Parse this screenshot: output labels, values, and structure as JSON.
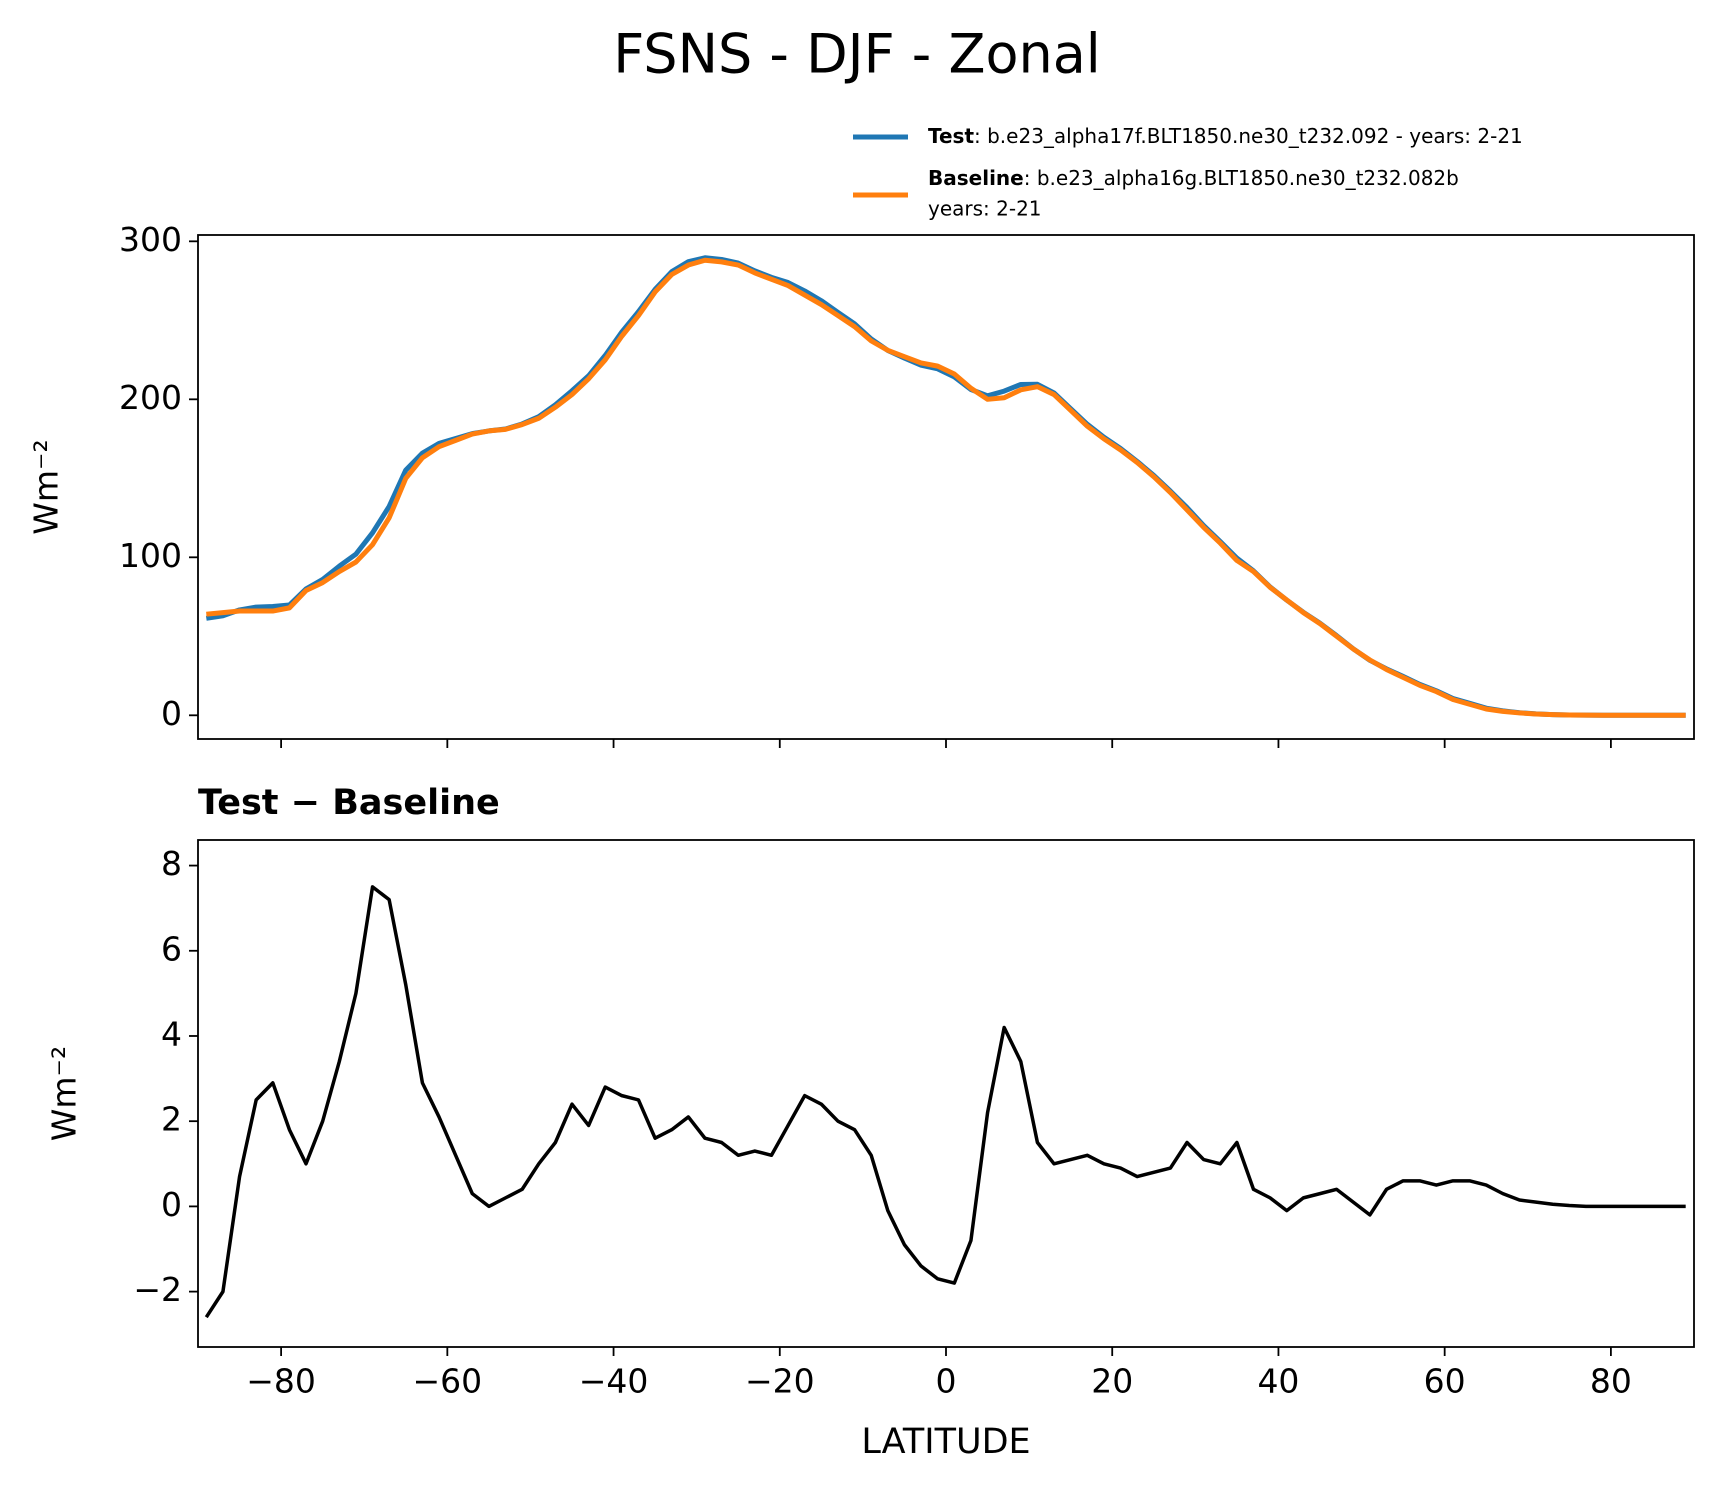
{
  "chart_data": [
    {
      "type": "line",
      "title": "FSNS - DJF - Zonal",
      "ylabel": "Wm⁻²",
      "xlim": [
        -90,
        90
      ],
      "ylim": [
        -15,
        304
      ],
      "xticks": [
        -80,
        -60,
        -40,
        -20,
        0,
        20,
        40,
        60,
        80
      ],
      "yticks": [
        0,
        100,
        200,
        300
      ],
      "x": [
        -89,
        -87,
        -85,
        -83,
        -81,
        -79,
        -77,
        -75,
        -73,
        -71,
        -69,
        -67,
        -65,
        -63,
        -61,
        -59,
        -57,
        -55,
        -53,
        -51,
        -49,
        -47,
        -45,
        -43,
        -41,
        -39,
        -37,
        -35,
        -33,
        -31,
        -29,
        -27,
        -25,
        -23,
        -21,
        -19,
        -17,
        -15,
        -13,
        -11,
        -9,
        -7,
        -5,
        -3,
        -1,
        1,
        3,
        5,
        7,
        9,
        11,
        13,
        15,
        17,
        19,
        21,
        23,
        25,
        27,
        29,
        31,
        33,
        35,
        37,
        39,
        41,
        43,
        45,
        47,
        49,
        51,
        53,
        55,
        57,
        59,
        61,
        63,
        65,
        67,
        69,
        71,
        73,
        75,
        77,
        79,
        81,
        83,
        85,
        87,
        89
      ],
      "series": [
        {
          "name": "Test",
          "description": [
            ": b.e23_alpha17f.BLT1850.ne30_t232.092 - years: 2-21"
          ],
          "color": "#1f77b4",
          "values": [
            61.4,
            63,
            66.7,
            68.5,
            68.9,
            69.8,
            80,
            86,
            94.4,
            102,
            115.5,
            132.2,
            155.2,
            165.9,
            172.1,
            175.2,
            178.3,
            180,
            181.2,
            184.4,
            189,
            196.5,
            205.4,
            214.9,
            227.8,
            242.6,
            255.5,
            269.6,
            280.8,
            287.1,
            289.6,
            288.5,
            286.2,
            281.3,
            277.2,
            273.9,
            268.6,
            262.4,
            255,
            247.8,
            238.2,
            230.9,
            226.1,
            221.6,
            219.3,
            214.2,
            206.2,
            202.2,
            205.2,
            209.4,
            209.5,
            204,
            194.1,
            184.2,
            176,
            168.9,
            160.7,
            151.8,
            141.9,
            131.5,
            120.1,
            110,
            99.5,
            91.4,
            81.2,
            72.9,
            65.2,
            58.3,
            50.4,
            42.1,
            34.8,
            29.4,
            24.6,
            19.6,
            15.5,
            10.6,
            7.6,
            4.5,
            2.8,
            1.65,
            0.9,
            0.45,
            0.22,
            0.1,
            0,
            0,
            0,
            0,
            0,
            0
          ]
        },
        {
          "name": "Baseline",
          "description": [
            ": b.e23_alpha16g.BLT1850.ne30_t232.082b",
            "years: 2-21"
          ],
          "color": "#ff7f0e",
          "values": [
            64,
            65,
            66,
            66,
            66,
            68,
            79,
            84,
            91,
            97,
            108,
            125,
            150,
            163,
            170,
            174,
            178,
            180,
            181,
            184,
            188,
            195,
            203,
            213,
            225,
            240,
            253,
            268,
            279,
            285,
            288,
            287,
            285,
            280,
            276,
            272,
            266,
            260,
            253,
            246,
            237,
            231,
            227,
            223,
            221,
            216,
            207,
            200,
            201,
            206,
            208,
            203,
            193,
            183,
            175,
            168,
            160,
            151,
            141,
            130,
            119,
            109,
            98,
            91,
            81,
            73,
            65,
            58,
            50,
            42,
            35,
            29,
            24,
            19,
            15,
            10,
            7,
            4,
            2.5,
            1.5,
            0.8,
            0.4,
            0.2,
            0.1,
            0,
            0,
            0,
            0,
            0,
            0
          ]
        }
      ]
    },
    {
      "type": "line",
      "title": "Test − Baseline",
      "ylabel": "Wm⁻²",
      "xlabel": "LATITUDE",
      "xlim": [
        -90,
        90
      ],
      "ylim": [
        -3.3,
        8.6
      ],
      "xticks": [
        {
          "value": -80,
          "label": "−80"
        },
        {
          "value": -60,
          "label": "−60"
        },
        {
          "value": -40,
          "label": "−40"
        },
        {
          "value": -20,
          "label": "−20"
        },
        0,
        20,
        40,
        60,
        80
      ],
      "yticks": [
        {
          "value": -2,
          "label": "−2"
        },
        0,
        2,
        4,
        6,
        8
      ],
      "x": [
        -89,
        -87,
        -85,
        -83,
        -81,
        -79,
        -77,
        -75,
        -73,
        -71,
        -69,
        -67,
        -65,
        -63,
        -61,
        -59,
        -57,
        -55,
        -53,
        -51,
        -49,
        -47,
        -45,
        -43,
        -41,
        -39,
        -37,
        -35,
        -33,
        -31,
        -29,
        -27,
        -25,
        -23,
        -21,
        -19,
        -17,
        -15,
        -13,
        -11,
        -9,
        -7,
        -5,
        -3,
        -1,
        1,
        3,
        5,
        7,
        9,
        11,
        13,
        15,
        17,
        19,
        21,
        23,
        25,
        27,
        29,
        31,
        33,
        35,
        37,
        39,
        41,
        43,
        45,
        47,
        49,
        51,
        53,
        55,
        57,
        59,
        61,
        63,
        65,
        67,
        69,
        71,
        73,
        75,
        77,
        79,
        81,
        83,
        85,
        87,
        89
      ],
      "series": [
        {
          "color": "#000000",
          "values": [
            -2.6,
            -2.0,
            0.7,
            2.5,
            2.9,
            1.8,
            1.0,
            2.0,
            3.4,
            5.0,
            7.5,
            7.2,
            5.2,
            2.9,
            2.1,
            1.2,
            0.3,
            0.0,
            0.2,
            0.4,
            1.0,
            1.5,
            2.4,
            1.9,
            2.8,
            2.6,
            2.5,
            1.6,
            1.8,
            2.1,
            1.6,
            1.5,
            1.2,
            1.3,
            1.2,
            1.9,
            2.6,
            2.4,
            2.0,
            1.8,
            1.2,
            -0.1,
            -0.9,
            -1.4,
            -1.7,
            -1.8,
            -0.8,
            2.2,
            4.2,
            3.4,
            1.5,
            1.0,
            1.1,
            1.2,
            1.0,
            0.9,
            0.7,
            0.8,
            0.9,
            1.5,
            1.1,
            1.0,
            1.5,
            0.4,
            0.2,
            -0.1,
            0.2,
            0.3,
            0.4,
            0.1,
            -0.2,
            0.4,
            0.6,
            0.6,
            0.5,
            0.6,
            0.6,
            0.5,
            0.3,
            0.15,
            0.1,
            0.05,
            0.02,
            0,
            0,
            0,
            0,
            0,
            0,
            0
          ]
        }
      ]
    }
  ]
}
